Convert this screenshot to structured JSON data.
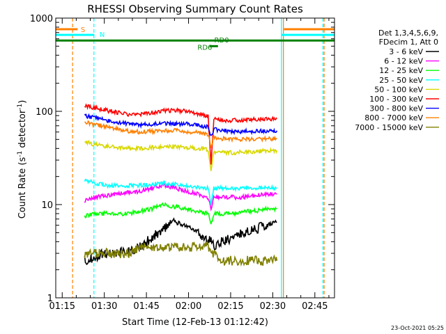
{
  "chart_data": {
    "type": "line",
    "title": "RHESSI Observing Summary Count Rates",
    "xlabel": "Start Time (12-Feb-13 01:12:42)",
    "ylabel_prefix": "Count Rate (s",
    "ylabel_exp1": "-1",
    "ylabel_mid": " detector",
    "ylabel_exp2": "-1",
    "ylabel_suffix": ")",
    "y_scale": "log",
    "ylim": [
      1,
      1000
    ],
    "xlim_minutes": [
      72.7,
      172.0
    ],
    "x_ticks": [
      {
        "label": "01:15",
        "min": 75
      },
      {
        "label": "01:30",
        "min": 90
      },
      {
        "label": "01:45",
        "min": 105
      },
      {
        "label": "02:00",
        "min": 120
      },
      {
        "label": "02:15",
        "min": 135
      },
      {
        "label": "02:30",
        "min": 150
      },
      {
        "label": "02:45",
        "min": 165
      }
    ],
    "y_ticks": [
      {
        "label": "1",
        "value": 1
      },
      {
        "label": "10",
        "value": 10
      },
      {
        "label": "100",
        "value": 100
      },
      {
        "label": "1000",
        "value": 1000
      }
    ],
    "legend_header": [
      "Det 1,3,4,5,6,9,",
      "FDecim 1, Att 0"
    ],
    "legend_placement": "right",
    "series": [
      {
        "name": "3 - 6 keV",
        "color": "#000000",
        "x": [
          83,
          87,
          91,
          95,
          99,
          103,
          107,
          111,
          115,
          119,
          123,
          127,
          128,
          129,
          132,
          136,
          140,
          144,
          148,
          151.5
        ],
        "y": [
          2.5,
          2.8,
          3.0,
          3.1,
          3.2,
          3.5,
          4.5,
          5.5,
          6.5,
          6.0,
          5.0,
          4.0,
          4.5,
          3.5,
          4.0,
          4.5,
          5.0,
          5.5,
          6.0,
          6.5
        ]
      },
      {
        "name": "6 - 12 keV",
        "color": "#ff00ff",
        "x": [
          83,
          87,
          91,
          95,
          99,
          103,
          107,
          111,
          115,
          119,
          123,
          127,
          128,
          129,
          132,
          136,
          140,
          144,
          148,
          151.5
        ],
        "y": [
          11,
          12,
          12.5,
          13,
          13.5,
          14,
          15,
          16,
          15,
          14,
          13,
          12,
          9,
          12,
          12,
          12,
          12,
          12.5,
          13,
          13
        ]
      },
      {
        "name": "12 - 25 keV",
        "color": "#00ff00",
        "x": [
          83,
          87,
          91,
          95,
          99,
          103,
          107,
          111,
          115,
          119,
          123,
          127,
          128,
          129,
          132,
          136,
          140,
          144,
          148,
          151.5
        ],
        "y": [
          7.5,
          8,
          8,
          8,
          8,
          8.5,
          9,
          10,
          9.5,
          9,
          8.5,
          8,
          6,
          8,
          8,
          8,
          8.5,
          8.5,
          9,
          9
        ]
      },
      {
        "name": "25 - 50 keV",
        "color": "#00ffff",
        "x": [
          83,
          87,
          91,
          95,
          99,
          103,
          107,
          111,
          115,
          119,
          123,
          127,
          128,
          129,
          132,
          136,
          140,
          144,
          148,
          151.5
        ],
        "y": [
          18,
          17,
          16,
          16,
          16,
          16,
          16.5,
          17,
          16.5,
          16,
          15.5,
          15,
          10,
          15,
          15,
          15,
          15,
          15,
          15,
          15
        ]
      },
      {
        "name": "50 - 100 keV",
        "color": "#d8d800",
        "x": [
          83,
          87,
          91,
          95,
          99,
          103,
          107,
          111,
          115,
          119,
          123,
          127,
          128,
          129,
          132,
          136,
          140,
          144,
          148,
          151.5
        ],
        "y": [
          47,
          44,
          42,
          41,
          40,
          40,
          41,
          42,
          42,
          41,
          40,
          39,
          24,
          37,
          36,
          36,
          37,
          37,
          38,
          38
        ]
      },
      {
        "name": "100 - 300 keV",
        "color": "#ff0000",
        "x": [
          83,
          87,
          91,
          95,
          99,
          103,
          107,
          111,
          115,
          119,
          123,
          127,
          128,
          129,
          132,
          136,
          140,
          144,
          148,
          151.5
        ],
        "y": [
          115,
          108,
          102,
          97,
          92,
          93,
          97,
          101,
          102,
          100,
          94,
          88,
          28,
          82,
          80,
          80,
          81,
          82,
          83,
          83
        ]
      },
      {
        "name": "300 - 800 keV",
        "color": "#0000ff",
        "x": [
          83,
          87,
          91,
          95,
          99,
          103,
          107,
          111,
          115,
          119,
          123,
          127,
          128,
          129,
          132,
          136,
          140,
          144,
          148,
          151.5
        ],
        "y": [
          90,
          85,
          80,
          76,
          73,
          72,
          73,
          74,
          74,
          73,
          71,
          68,
          55,
          64,
          62,
          61,
          61,
          61,
          62,
          62
        ]
      },
      {
        "name": "800 - 7000 keV",
        "color": "#ff8000",
        "x": [
          83,
          87,
          91,
          95,
          99,
          103,
          107,
          111,
          115,
          119,
          123,
          127,
          128,
          129,
          132,
          136,
          140,
          144,
          148,
          151.5
        ],
        "y": [
          77,
          72,
          68,
          64,
          61,
          60,
          61,
          62,
          62,
          61,
          59,
          57,
          40,
          53,
          51,
          50,
          50,
          50,
          51,
          51
        ]
      },
      {
        "name": "7000 - 15000 keV",
        "color": "#808000",
        "x": [
          83,
          87,
          91,
          95,
          99,
          103,
          107,
          111,
          115,
          119,
          123,
          127,
          128,
          129,
          132,
          136,
          140,
          144,
          148,
          151.5
        ],
        "y": [
          3,
          3,
          3,
          3,
          3,
          3.5,
          3.5,
          3.5,
          3.5,
          3.5,
          3.5,
          3.5,
          3,
          3,
          2.5,
          2.5,
          2.5,
          2.5,
          2.5,
          2.5
        ]
      }
    ],
    "vertical_lines": [
      {
        "min": 78.7,
        "color": "#ff8000",
        "dashed": true
      },
      {
        "min": 86.3,
        "color": "#00ffff",
        "dashed": true
      },
      {
        "min": 153.1,
        "color": "#00ffff",
        "dashed": false
      },
      {
        "min": 153.8,
        "color": "#ff8000",
        "dashed": false
      },
      {
        "min": 167.9,
        "color": "#00ffff",
        "dashed": true
      },
      {
        "min": 168.3,
        "color": "#ff8000",
        "dashed": true
      }
    ],
    "flags": [
      {
        "label": "S",
        "color": "#ff8000",
        "value": 760,
        "segments": [
          [
            72.7,
            80.5
          ],
          [
            154.0,
            172.0
          ]
        ]
      },
      {
        "label": "N",
        "color": "#00ffff",
        "value": 660,
        "segments": [
          [
            72.7,
            86.4
          ],
          [
            153.0,
            172.0
          ]
        ]
      },
      {
        "label": "RD0",
        "color": "#008000",
        "value": 575,
        "segments": [
          [
            72.7,
            172.0
          ]
        ]
      },
      {
        "label": "RD6",
        "color": "#008000",
        "value": 500,
        "segments": [
          [
            127.5,
            130.5
          ]
        ]
      }
    ],
    "footer_date": "23-Oct-2021 05:25"
  }
}
